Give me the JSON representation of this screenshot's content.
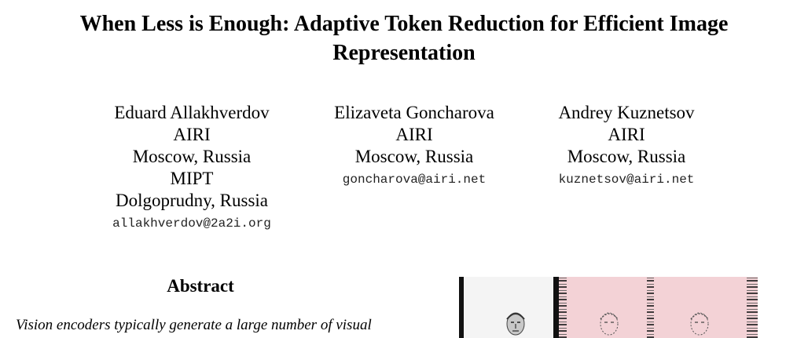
{
  "paper": {
    "title_line1": "When Less is Enough: Adaptive Token Reduction for Efficient Image",
    "title_line2": "Representation",
    "authors": [
      {
        "name": "Eduard Allakhverdov",
        "affiliations": [
          "AIRI",
          "Moscow, Russia",
          "MIPT",
          "Dolgoprudny, Russia"
        ],
        "email": "allakhverdov@2a2i.org"
      },
      {
        "name": "Elizaveta Goncharova",
        "affiliations": [
          "AIRI",
          "Moscow, Russia"
        ],
        "email": "goncharova@airi.net"
      },
      {
        "name": "Andrey Kuznetsov",
        "affiliations": [
          "AIRI",
          "Moscow, Russia"
        ],
        "email": "kuznetsov@airi.net"
      }
    ],
    "abstract_heading": "Abstract",
    "abstract_first_line": "Vision encoders typically generate a large number of visual"
  },
  "figure": {
    "panels": [
      "original-portrait",
      "masked-portrait",
      "reconstructed-portrait"
    ],
    "tint_color": "#f3d2d6"
  }
}
